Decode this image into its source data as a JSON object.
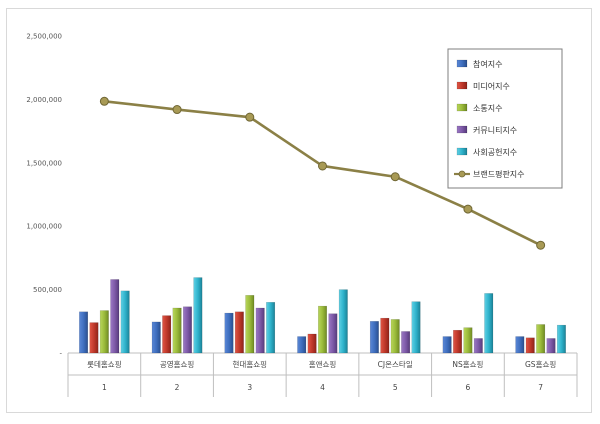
{
  "chart_data": {
    "type": "bar",
    "categories": [
      "롯데홈쇼핑",
      "공영홈쇼핑",
      "현대홈쇼핑",
      "홈앤쇼핑",
      "CJ온스타일",
      "NS홈쇼핑",
      "GS홈쇼핑"
    ],
    "ranks": [
      "1",
      "2",
      "3",
      "4",
      "5",
      "6",
      "7"
    ],
    "ylim": [
      0,
      2500000
    ],
    "yticks": [
      "-",
      "500,000",
      "1,000,000",
      "1,500,000",
      "2,000,000",
      "2,500,000"
    ],
    "grid": false,
    "legend_position": "right",
    "series": [
      {
        "name": "참여지수",
        "type": "bar",
        "color": "#3f6fbf",
        "values": [
          325000,
          245000,
          315000,
          130000,
          250000,
          130000,
          130000
        ]
      },
      {
        "name": "미디어지수",
        "type": "bar",
        "color": "#c0392b",
        "values": [
          240000,
          295000,
          325000,
          150000,
          275000,
          180000,
          120000
        ]
      },
      {
        "name": "소통지수",
        "type": "bar",
        "color": "#9bbb3b",
        "values": [
          335000,
          355000,
          455000,
          370000,
          265000,
          200000,
          225000
        ]
      },
      {
        "name": "커뮤니티지수",
        "type": "bar",
        "color": "#7e5aa8",
        "values": [
          580000,
          365000,
          355000,
          310000,
          170000,
          115000,
          115000
        ]
      },
      {
        "name": "사회공헌지수",
        "type": "bar",
        "color": "#2fb3cc",
        "values": [
          490000,
          595000,
          400000,
          500000,
          405000,
          470000,
          220000
        ]
      },
      {
        "name": "브랜드평판지수",
        "type": "line",
        "color": "#8b8046",
        "values": [
          1985000,
          1920000,
          1860000,
          1475000,
          1390000,
          1135000,
          850000
        ]
      }
    ]
  }
}
